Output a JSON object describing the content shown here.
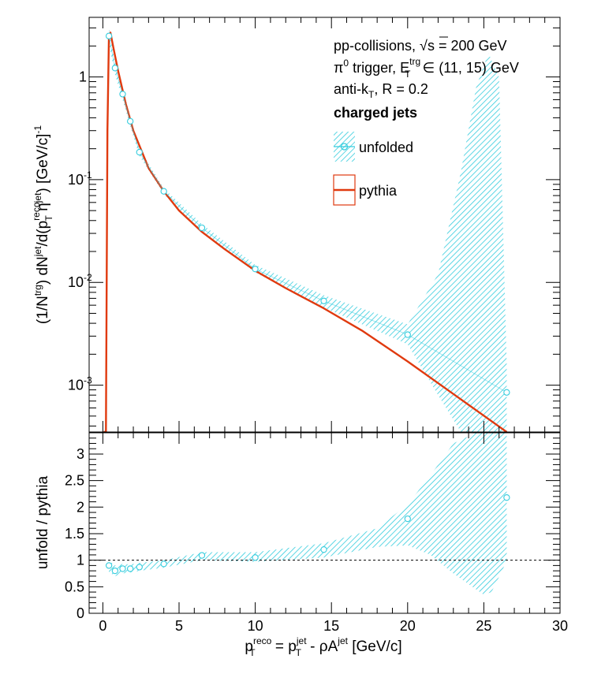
{
  "chart_data": {
    "type": "line",
    "colors": {
      "unfolded": "#33ccdd",
      "pythia": "#e03a0f",
      "frame": "#000000"
    },
    "annotations": {
      "collisions": "pp-collisions, ",
      "sqrt_s": "s",
      "energy": " = 200 GeV",
      "trigger_pi": "π",
      "trigger_zero": "0",
      "trigger_mid": " trigger, E",
      "trigger_sup": "trg",
      "trigger_sub": "T",
      "trigger_range": " ∈ (11, 15) GeV",
      "algo_main": "anti-k",
      "algo_sub": "T",
      "algo_rest": ", R = 0.2",
      "jets": "charged jets"
    },
    "legend": {
      "unfolded": "unfolded",
      "pythia": "pythia"
    },
    "top_panel": {
      "ylabel_parts": [
        "(1/N",
        "trg",
        ") dN",
        "jet",
        "/d(p",
        "reco",
        "T",
        " η",
        "jet",
        ") [GeV/c]",
        "-1"
      ],
      "yscale": "log",
      "ylim": [
        0.00035,
        3.8
      ],
      "yticks": [
        {
          "value": 1,
          "base": "1",
          "exp": ""
        },
        {
          "value": 0.1,
          "base": "10",
          "exp": "-1"
        },
        {
          "value": 0.01,
          "base": "10",
          "exp": "-2"
        },
        {
          "value": 0.001,
          "base": "10",
          "exp": "-3"
        }
      ],
      "series": [
        {
          "name": "unfolded",
          "x": [
            0.4,
            0.8,
            1.3,
            1.8,
            2.4,
            4.0,
            6.5,
            10.0,
            14.5,
            20.0,
            26.5
          ],
          "y": [
            2.5,
            1.22,
            0.68,
            0.37,
            0.185,
            0.077,
            0.034,
            0.0135,
            0.0066,
            0.0031,
            0.00085
          ],
          "band_x": [
            0.4,
            0.8,
            1.3,
            1.8,
            2.4,
            4.0,
            6.5,
            10.0,
            14.5,
            20.0,
            22.0,
            23.5,
            24.5,
            25.3,
            26.0,
            26.5
          ],
          "band_low": [
            2.1,
            1.05,
            0.6,
            0.33,
            0.17,
            0.072,
            0.031,
            0.0125,
            0.0057,
            0.0025,
            0.0008,
            0.00035,
            0.00035,
            0.00035,
            0.00035,
            0.00035
          ],
          "band_high": [
            3.0,
            1.4,
            0.78,
            0.42,
            0.2,
            0.082,
            0.037,
            0.0148,
            0.0075,
            0.0039,
            0.012,
            0.12,
            0.8,
            1.7,
            1.0,
            0.0016
          ]
        },
        {
          "name": "pythia",
          "x": [
            0.05,
            0.2,
            0.3,
            0.4,
            0.5,
            0.7,
            1.0,
            1.5,
            2.0,
            3.0,
            4.0,
            5.0,
            6.5,
            8.0,
            10.0,
            12.0,
            14.5,
            17.0,
            20.0,
            23.0,
            26.5
          ],
          "y": [
            0.00035,
            0.00035,
            0.3,
            2.5,
            2.7,
            1.9,
            1.15,
            0.55,
            0.3,
            0.13,
            0.077,
            0.05,
            0.031,
            0.021,
            0.013,
            0.0088,
            0.0056,
            0.0034,
            0.0017,
            0.00082,
            0.00035
          ]
        }
      ]
    },
    "bottom_panel": {
      "ylabel": "unfold / pythia",
      "ylim": [
        0,
        3.4
      ],
      "yticks": [
        "0",
        "0.5",
        "1",
        "1.5",
        "2",
        "2.5",
        "3"
      ],
      "reference_line": 1,
      "ratio": {
        "x": [
          0.4,
          0.8,
          1.3,
          1.8,
          2.4,
          4.0,
          6.5,
          10.0,
          14.5,
          20.0,
          26.5
        ],
        "y": [
          0.9,
          0.8,
          0.84,
          0.84,
          0.87,
          0.93,
          1.09,
          1.05,
          1.2,
          1.78,
          2.18
        ],
        "band_x": [
          0.4,
          0.8,
          1.3,
          1.8,
          2.4,
          4.0,
          6.5,
          10.0,
          14.5,
          18.0,
          20.0,
          21.5,
          23.0,
          24.5,
          25.0,
          25.5,
          26.2,
          26.5
        ],
        "band_low": [
          0.78,
          0.7,
          0.75,
          0.77,
          0.8,
          0.86,
          1.0,
          0.97,
          1.05,
          1.25,
          1.28,
          1.1,
          0.75,
          0.45,
          0.35,
          0.4,
          0.8,
          1.0
        ],
        "band_high": [
          1.0,
          0.9,
          0.93,
          0.92,
          0.95,
          1.0,
          1.15,
          1.15,
          1.32,
          1.6,
          2.05,
          2.6,
          3.2,
          3.4,
          3.4,
          3.4,
          3.4,
          3.4
        ]
      }
    },
    "xaxis": {
      "xlim": [
        -0.9,
        30
      ],
      "ticks": [
        "0",
        "5",
        "10",
        "15",
        "20",
        "25",
        "30"
      ],
      "label_parts": [
        "p",
        "reco",
        "T",
        " = p",
        "jet",
        "T",
        " - ρA",
        "jet",
        " [GeV/c]"
      ]
    }
  }
}
